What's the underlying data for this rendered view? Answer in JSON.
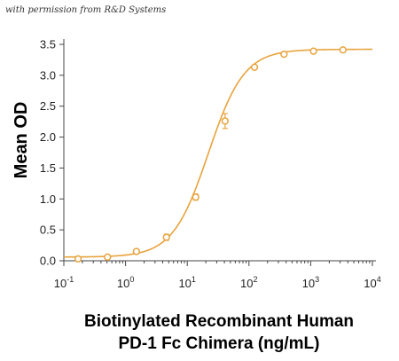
{
  "permission_note": "with permission from R&D Systems",
  "chart_data": {
    "type": "line",
    "ylabel": "Mean OD",
    "xlabel_line1": "Biotinylated Recombinant Human",
    "xlabel_line2": "PD-1 Fc Chimera (ng/mL)",
    "xscale": "log",
    "xlim": [
      0.1,
      10000
    ],
    "ylim": [
      0.0,
      3.5
    ],
    "x_tick_values": [
      0.1,
      1,
      10,
      100,
      1000,
      10000
    ],
    "x_tick_bases": [
      "10",
      "10",
      "10",
      "10",
      "10",
      "10"
    ],
    "x_tick_exponents": [
      "-1",
      "0",
      "1",
      "2",
      "3",
      "4"
    ],
    "y_tick_values": [
      0.0,
      0.5,
      1.0,
      1.5,
      2.0,
      2.5,
      3.0,
      3.5
    ],
    "y_tick_labels": [
      "0.0",
      "0.5",
      "1.0",
      "1.5",
      "2.0",
      "2.5",
      "3.0",
      "3.5"
    ],
    "grid": false,
    "color": "#E8A33D",
    "series": [
      {
        "points": [
          {
            "x": 0.17,
            "y": 0.03,
            "err": 0.01
          },
          {
            "x": 0.51,
            "y": 0.06,
            "err": 0.01
          },
          {
            "x": 1.5,
            "y": 0.15,
            "err": 0.02
          },
          {
            "x": 4.6,
            "y": 0.38,
            "err": 0.05
          },
          {
            "x": 13.7,
            "y": 1.03,
            "err": 0.05
          },
          {
            "x": 41,
            "y": 2.26,
            "err": 0.12
          },
          {
            "x": 123,
            "y": 3.13,
            "err": 0.03
          },
          {
            "x": 370,
            "y": 3.34,
            "err": 0.02
          },
          {
            "x": 1111,
            "y": 3.39,
            "err": 0.02
          },
          {
            "x": 3333,
            "y": 3.41,
            "err": 0.02
          }
        ],
        "fit": {
          "bottom": 0.06,
          "top": 3.42,
          "ec50": 22,
          "hill": 1.5
        }
      }
    ]
  }
}
